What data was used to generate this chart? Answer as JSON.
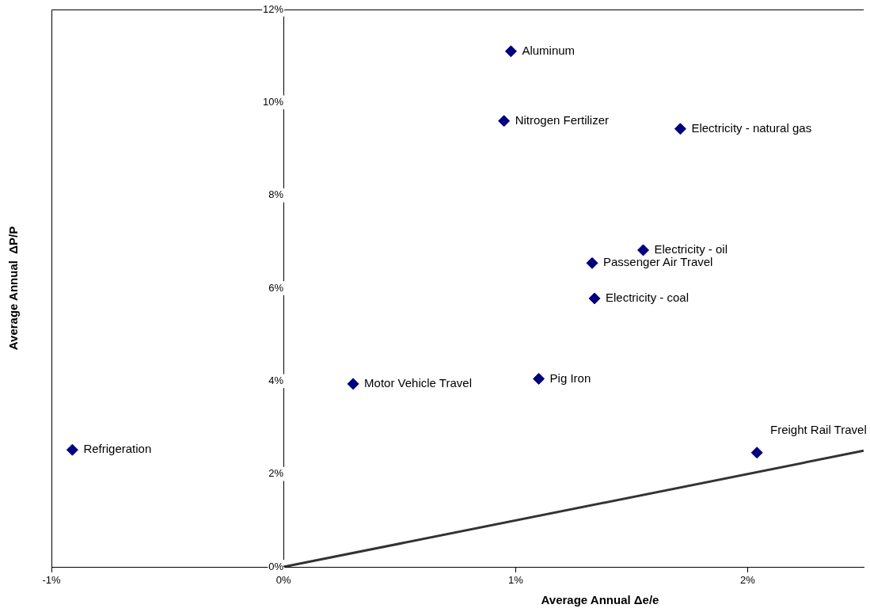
{
  "chart_data": {
    "type": "scatter",
    "xlabel": "Average Annual Δe/e",
    "ylabel": "Average Annual  ΔP/P",
    "xlim": [
      -1,
      2.5
    ],
    "ylim": [
      0,
      12
    ],
    "xticks": [
      {
        "value": -1,
        "label": "-1%"
      },
      {
        "value": 0,
        "label": "0%"
      },
      {
        "value": 1,
        "label": "1%"
      },
      {
        "value": 2,
        "label": "2%"
      }
    ],
    "yticks": [
      {
        "value": 0,
        "label": "0%"
      },
      {
        "value": 2,
        "label": "2%"
      },
      {
        "value": 4,
        "label": "4%"
      },
      {
        "value": 6,
        "label": "6%"
      },
      {
        "value": 8,
        "label": "8%"
      },
      {
        "value": 10,
        "label": "10%"
      },
      {
        "value": 12,
        "label": "12%"
      }
    ],
    "series": [
      {
        "type": "scatter",
        "color": "#000080",
        "marker": "diamond",
        "x": [
          0.98,
          0.95,
          1.71,
          1.55,
          1.33,
          1.34,
          1.1,
          0.3,
          -0.91,
          2.04
        ],
        "values": [
          11.1,
          9.6,
          9.43,
          6.82,
          6.54,
          5.78,
          4.05,
          3.94,
          2.52,
          2.46
        ]
      },
      {
        "type": "line",
        "color": "#333333",
        "marker": "none",
        "x": [
          0,
          2.5
        ],
        "values": [
          0,
          2.5
        ]
      }
    ],
    "annotations": [
      {
        "text": "Aluminum",
        "x": 0.98,
        "y": 11.1
      },
      {
        "text": "Nitrogen Fertilizer",
        "x": 0.95,
        "y": 9.6
      },
      {
        "text": "Electricity - natural gas",
        "x": 1.71,
        "y": 9.43
      },
      {
        "text": "Electricity - oil",
        "x": 1.55,
        "y": 6.82
      },
      {
        "text": "Passenger Air Travel",
        "x": 1.33,
        "y": 6.54
      },
      {
        "text": "Electricity - coal",
        "x": 1.34,
        "y": 5.78
      },
      {
        "text": "Pig Iron",
        "x": 1.1,
        "y": 4.05
      },
      {
        "text": "Motor Vehicle Travel",
        "x": 0.3,
        "y": 3.94
      },
      {
        "text": "Refrigeration",
        "x": -0.91,
        "y": 2.52
      },
      {
        "text": "Freight Rail Travel",
        "x": 2.04,
        "y": 2.46
      }
    ],
    "legend": false,
    "grid": false
  }
}
